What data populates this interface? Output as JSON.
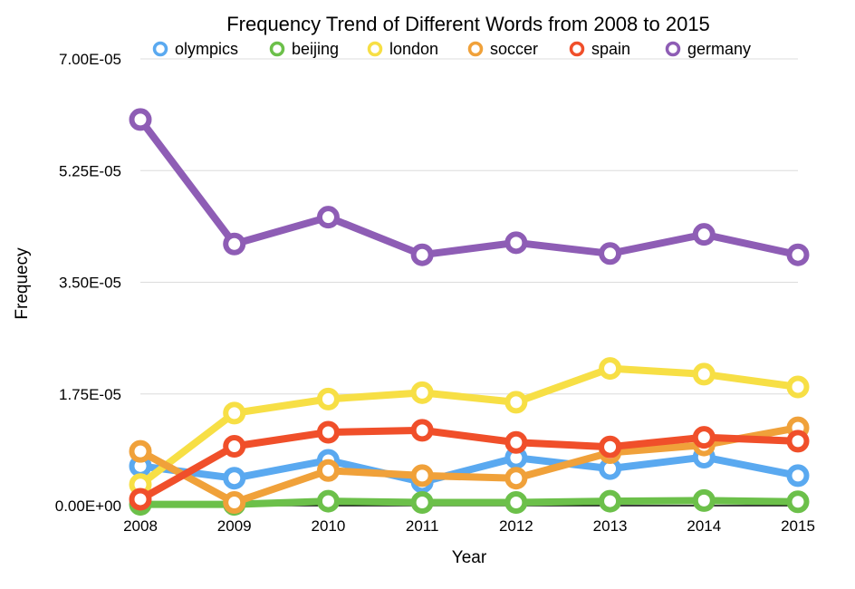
{
  "chart_data": {
    "type": "line",
    "title": "Frequency Trend of Different Words from 2008 to 2015",
    "xlabel": "Year",
    "ylabel": "Frequecy",
    "categories": [
      "2008",
      "2009",
      "2010",
      "2011",
      "2012",
      "2013",
      "2014",
      "2015"
    ],
    "ylim": [
      0,
      7e-05
    ],
    "yticks": [
      "0.00E+00",
      "1.75E-05",
      "3.50E-05",
      "5.25E-05",
      "7.00E-05"
    ],
    "ytick_values": [
      0,
      1.75e-05,
      3.5e-05,
      5.25e-05,
      7e-05
    ],
    "grid": true,
    "legend_position": "top",
    "series": [
      {
        "name": "olympics",
        "color": "#5aa9f0",
        "values": [
          6.2e-06,
          4.3e-06,
          7.1e-06,
          3.7e-06,
          7.5e-06,
          5.8e-06,
          7.6e-06,
          4.7e-06
        ]
      },
      {
        "name": "beijing",
        "color": "#6cc04a",
        "values": [
          2e-07,
          2e-07,
          7e-07,
          5e-07,
          5e-07,
          7e-07,
          8e-07,
          6e-07
        ]
      },
      {
        "name": "london",
        "color": "#f7df45",
        "values": [
          3.3e-06,
          1.45e-05,
          1.67e-05,
          1.77e-05,
          1.62e-05,
          2.15e-05,
          2.06e-05,
          1.86e-05
        ]
      },
      {
        "name": "soccer",
        "color": "#f0a13a",
        "values": [
          8.5e-06,
          5e-07,
          5.5e-06,
          4.7e-06,
          4.3e-06,
          8.3e-06,
          9.5e-06,
          1.22e-05
        ]
      },
      {
        "name": "spain",
        "color": "#f04f2a",
        "values": [
          1e-06,
          9.3e-06,
          1.15e-05,
          1.18e-05,
          9.9e-06,
          9.2e-06,
          1.07e-05,
          1.01e-05
        ]
      },
      {
        "name": "germany",
        "color": "#8e5db5",
        "values": [
          6.05e-05,
          4.1e-05,
          4.52e-05,
          3.93e-05,
          4.12e-05,
          3.95e-05,
          4.25e-05,
          3.93e-05
        ]
      }
    ]
  }
}
